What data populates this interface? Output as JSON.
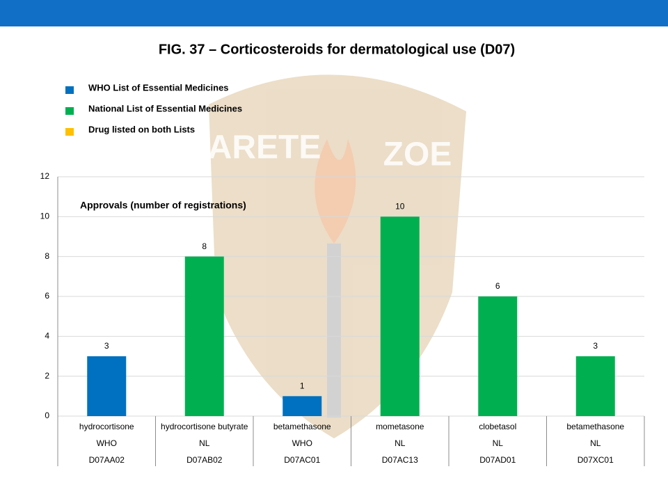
{
  "chart_data": {
    "type": "bar",
    "title": "FIG. 37 – Corticosteroids for dermatological use (D07)",
    "annotation": "Approvals (number of registrations)",
    "watermark": [
      "ARETE",
      "ZOE"
    ],
    "legend": [
      {
        "label": "WHO List of Essential Medicines",
        "color": "#0070c0"
      },
      {
        "label": "National List of Essential Medicines",
        "color": "#00b050"
      },
      {
        "label": "Drug listed on both Lists",
        "color": "#ffc000"
      }
    ],
    "categories": [
      "hydrocortisone",
      "hydrocortisone butyrate",
      "betamethasone",
      "mometasone",
      "clobetasol",
      "betamethasone"
    ],
    "list_labels": [
      "WHO",
      "NL",
      "WHO",
      "NL",
      "NL",
      "NL"
    ],
    "atc_codes": [
      "D07AA02",
      "D07AB02",
      "D07AC01",
      "D07AC13",
      "D07AD01",
      "D07XC01"
    ],
    "values": [
      3,
      8,
      1,
      10,
      6,
      3
    ],
    "colors": [
      "#0070c0",
      "#00b050",
      "#0070c0",
      "#00b050",
      "#00b050",
      "#00b050"
    ],
    "ylim": [
      0,
      12
    ],
    "yticks": [
      0,
      2,
      4,
      6,
      8,
      10,
      12
    ],
    "grid": true
  }
}
